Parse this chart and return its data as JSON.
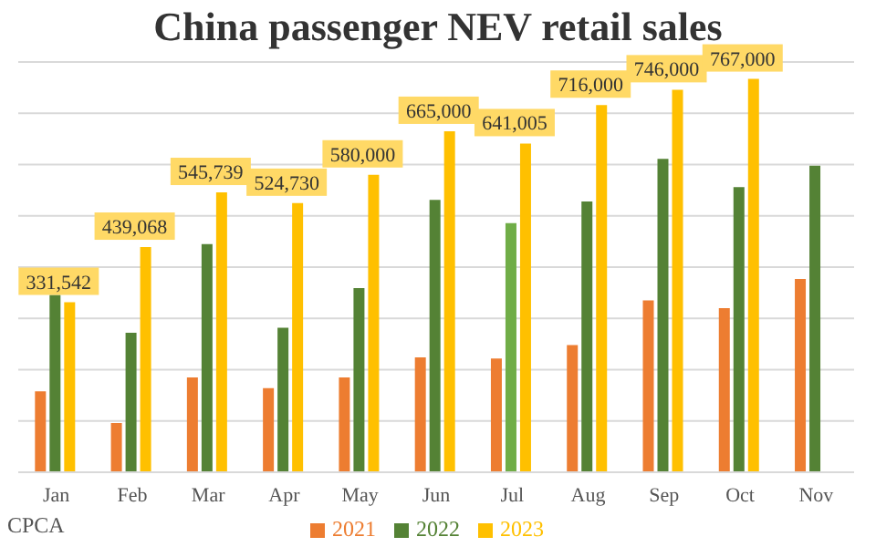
{
  "chart_data": {
    "type": "bar",
    "title": "China passenger NEV retail sales",
    "grid": "y",
    "legend": "bottom",
    "annotations": [
      "CPCA"
    ],
    "tick_labels": "x",
    "ylim": [
      0,
      800000
    ],
    "categories": [
      "Jan",
      "Feb",
      "Mar",
      "Apr",
      "May",
      "Jun",
      "Jul",
      "Aug",
      "Sep",
      "Oct",
      "Nov"
    ],
    "series": [
      {
        "name": "2021",
        "color": "#ed7d31",
        "values": [
          158000,
          96000,
          185000,
          164000,
          185000,
          224000,
          222000,
          248000,
          335000,
          320000,
          377000
        ]
      },
      {
        "name": "2022",
        "color": "#548235",
        "colors": [
          "#548235",
          "#548235",
          "#548235",
          "#548235",
          "#548235",
          "#548235",
          "#70ad47",
          "#548235",
          "#548235",
          "#548235",
          "#548235"
        ],
        "values": [
          346000,
          272000,
          445000,
          282000,
          359000,
          531000,
          486000,
          528000,
          611000,
          556000,
          598000
        ]
      },
      {
        "name": "2023",
        "color": "#ffc000",
        "values": [
          331542,
          439068,
          545739,
          524730,
          580000,
          665000,
          641005,
          716000,
          746000,
          767000,
          null
        ],
        "value_labels": [
          "331,542",
          "439,068",
          "545,739",
          "524,730",
          "580,000",
          "665,000",
          "641,005",
          "716,000",
          "746,000",
          "767,000",
          null
        ]
      }
    ]
  }
}
